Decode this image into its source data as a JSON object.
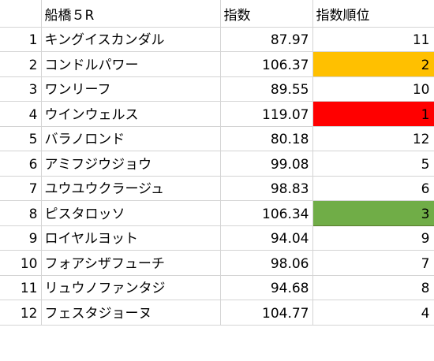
{
  "header": {
    "race": "船橋５R",
    "index": "指数",
    "rank": "指数順位"
  },
  "rows": [
    {
      "num": "1",
      "name": "キングイスカンダル",
      "index": "87.97",
      "rank": "11",
      "fill": ""
    },
    {
      "num": "2",
      "name": "コンドルパワー",
      "index": "106.37",
      "rank": "2",
      "fill": "#ffc000"
    },
    {
      "num": "3",
      "name": "ワンリーフ",
      "index": "89.55",
      "rank": "10",
      "fill": ""
    },
    {
      "num": "4",
      "name": "ウインウェルス",
      "index": "119.07",
      "rank": "1",
      "fill": "#ff0000"
    },
    {
      "num": "5",
      "name": "バラノロンド",
      "index": "80.18",
      "rank": "12",
      "fill": ""
    },
    {
      "num": "6",
      "name": "アミフジウジョウ",
      "index": "99.08",
      "rank": "5",
      "fill": ""
    },
    {
      "num": "7",
      "name": "ユウユウクラージュ",
      "index": "98.83",
      "rank": "6",
      "fill": ""
    },
    {
      "num": "8",
      "name": "ピスタロッソ",
      "index": "106.34",
      "rank": "3",
      "fill": "#70ad47"
    },
    {
      "num": "9",
      "name": "ロイヤルヨット",
      "index": "94.04",
      "rank": "9",
      "fill": ""
    },
    {
      "num": "10",
      "name": "フォアシザフューチ",
      "index": "98.06",
      "rank": "7",
      "fill": ""
    },
    {
      "num": "11",
      "name": "リュウノファンタジ",
      "index": "94.68",
      "rank": "8",
      "fill": ""
    },
    {
      "num": "12",
      "name": "フェスタジョーヌ",
      "index": "104.77",
      "rank": "4",
      "fill": ""
    }
  ]
}
